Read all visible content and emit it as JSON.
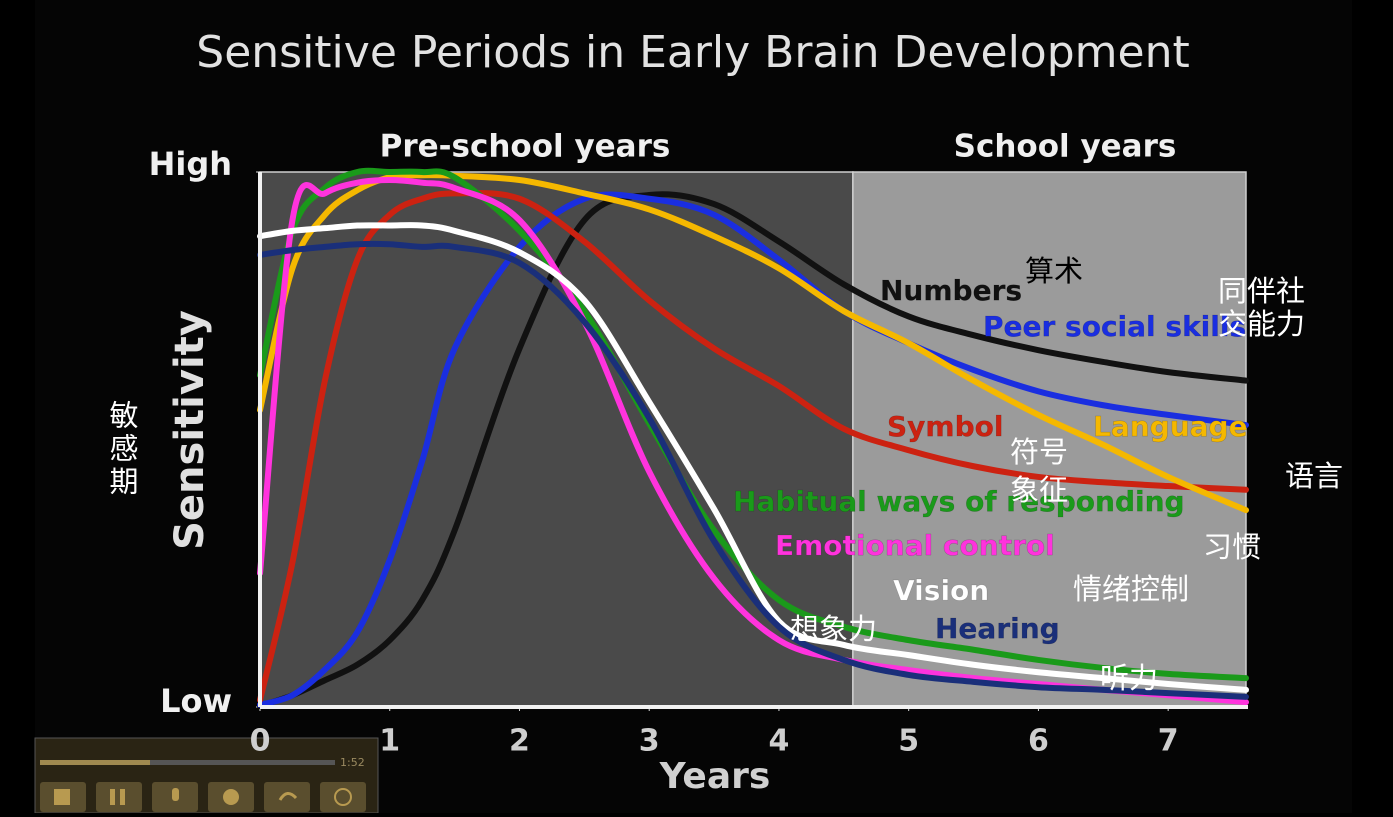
{
  "chart_data": {
    "type": "line",
    "title": "Sensitive Periods in Early Brain Development",
    "x_label": "Years",
    "y_label": "Sensitivity",
    "xlim": [
      0,
      7.6
    ],
    "ylim": [
      0,
      100
    ],
    "xticks": [
      0,
      1,
      2,
      3,
      4,
      5,
      6,
      7
    ],
    "yticks": [
      {
        "value": 0,
        "label": "Low"
      },
      {
        "value": 100,
        "label": "High"
      }
    ],
    "regions": [
      {
        "label": "Pre-school years",
        "range": [
          0,
          4.57
        ],
        "color": "#4a4a4a"
      },
      {
        "label": "School years",
        "range": [
          4.57,
          7.6
        ],
        "color": "#9b9b9b"
      }
    ],
    "x": [
      0,
      0.25,
      0.5,
      0.75,
      1,
      1.25,
      1.5,
      2,
      2.5,
      3,
      3.5,
      4,
      4.5,
      5,
      5.5,
      6,
      6.5,
      7,
      7.6
    ],
    "series": [
      {
        "name": "Numbers",
        "color": "#111111",
        "values": [
          0.2,
          2.2,
          5,
          7.9,
          12.5,
          20,
          33,
          67,
          91,
          95.7,
          94,
          87,
          79,
          73,
          69.5,
          66.7,
          64.5,
          62.6,
          61
        ]
      },
      {
        "name": "Peer social skills",
        "color": "#1a2ee0",
        "values": [
          0.4,
          2.2,
          7,
          14,
          27.5,
          46,
          67,
          86,
          95,
          95,
          92,
          83.6,
          74,
          68,
          63,
          59,
          56.4,
          54.6,
          52.7
        ]
      },
      {
        "name": "Symbol",
        "color": "#cc2211",
        "values": [
          1.3,
          27,
          61,
          83.6,
          92,
          95,
          96,
          95,
          87,
          76,
          67,
          60,
          52,
          48,
          45,
          43,
          42,
          41.3,
          40.6
        ]
      },
      {
        "name": "Language",
        "color": "#f5b800",
        "values": [
          55.5,
          82,
          92,
          96.6,
          99,
          99.4,
          99.3,
          98.5,
          96,
          93,
          88,
          82,
          74,
          68,
          61,
          54.6,
          49,
          43,
          36.8
        ]
      },
      {
        "name": "Habitual ways of responding",
        "color": "#1a9a1a",
        "values": [
          62,
          89,
          97,
          100,
          100,
          100,
          99,
          89,
          74,
          53,
          33,
          20,
          15,
          12.5,
          10.7,
          8.8,
          7.3,
          6.2,
          5.4
        ]
      },
      {
        "name": "Emotional control",
        "color": "#ff33dd",
        "values": [
          25,
          91,
          96,
          98,
          98.5,
          98,
          97,
          91,
          72,
          44,
          24,
          12.5,
          8.8,
          6.9,
          5.4,
          4.3,
          3.2,
          2.2,
          0.9
        ]
      },
      {
        "name": "Vision",
        "color": "#ffffff",
        "values": [
          88,
          89,
          89.5,
          90,
          90,
          90,
          89,
          85,
          76,
          57,
          37,
          16,
          11.6,
          9.7,
          7.9,
          6.5,
          5.4,
          4.3,
          3.2
        ]
      },
      {
        "name": "Hearing",
        "color": "#1a2f7a",
        "values": [
          84.5,
          85.4,
          86,
          86.5,
          86.5,
          86,
          86,
          83,
          72,
          54,
          31,
          15,
          8.8,
          6,
          4.7,
          3.7,
          3.2,
          2.6,
          1.9
        ]
      }
    ],
    "annotations": [
      "敏感期",
      "算术",
      "同伴社",
      "交能力",
      "符号",
      "象征",
      "语言",
      "习惯",
      "情绪控制",
      "想象力",
      "听力"
    ]
  },
  "player": {
    "time": "1:52"
  }
}
